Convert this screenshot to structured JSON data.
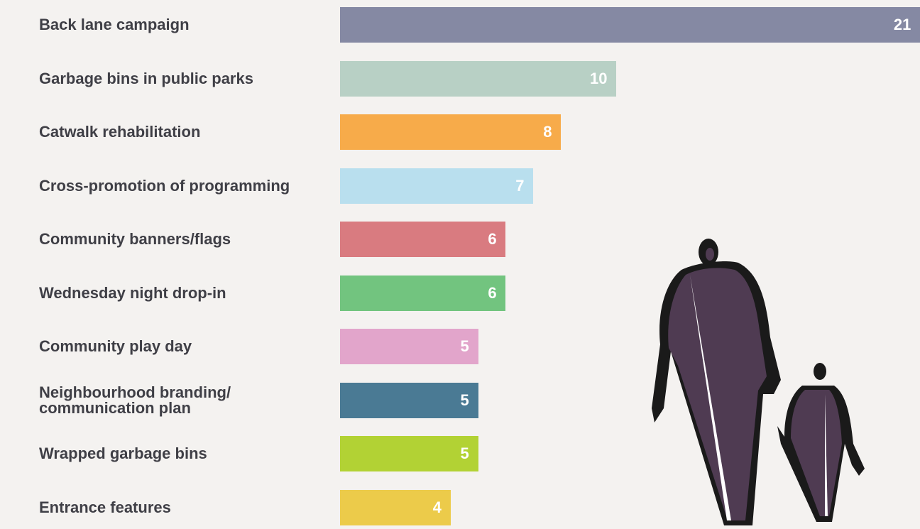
{
  "chart_data": {
    "type": "bar",
    "orientation": "horizontal",
    "categories": [
      "Back lane campaign",
      "Garbage bins in public parks",
      "Catwalk rehabilitation",
      "Cross-promotion of programming",
      "Community banners/flags",
      "Wednesday night drop-in",
      "Community play day",
      "Neighbourhood branding/\ncommunication plan",
      "Wrapped garbage bins",
      "Entrance features"
    ],
    "values": [
      21,
      10,
      8,
      7,
      6,
      6,
      5,
      5,
      5,
      4
    ],
    "colors": [
      "#8589a3",
      "#b8d0c5",
      "#f7ab4a",
      "#b9dfee",
      "#d97b80",
      "#72c47f",
      "#e2a5cb",
      "#4a7a94",
      "#b2d234",
      "#eccb4a"
    ]
  }
}
